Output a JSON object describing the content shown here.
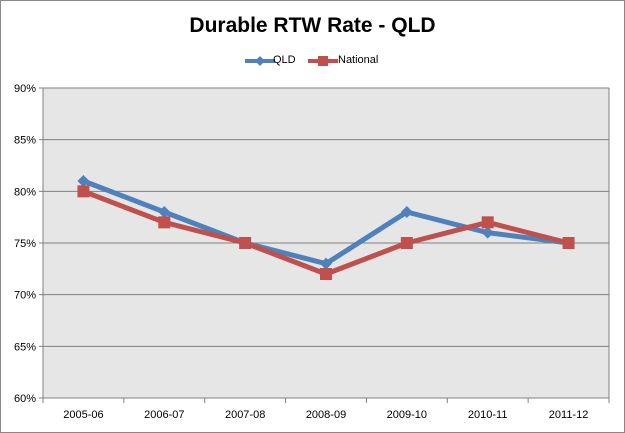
{
  "chart_data": {
    "type": "line",
    "title": "Durable RTW Rate - QLD",
    "xlabel": "",
    "ylabel": "",
    "categories": [
      "2005-06",
      "2006-07",
      "2007-08",
      "2008-09",
      "2009-10",
      "2010-11",
      "2011-12"
    ],
    "y_ticks": [
      "60%",
      "65%",
      "70%",
      "75%",
      "80%",
      "85%",
      "90%"
    ],
    "ylim": [
      60,
      90
    ],
    "grid": "horizontal",
    "legend_position": "top",
    "series": [
      {
        "name": "QLD",
        "marker": "diamond",
        "color": "#4F81BD",
        "values": [
          81,
          78,
          75,
          73,
          78,
          76,
          75
        ]
      },
      {
        "name": "National",
        "marker": "square",
        "color": "#C0504D",
        "values": [
          80,
          77,
          75,
          72,
          75,
          77,
          75
        ]
      }
    ]
  }
}
